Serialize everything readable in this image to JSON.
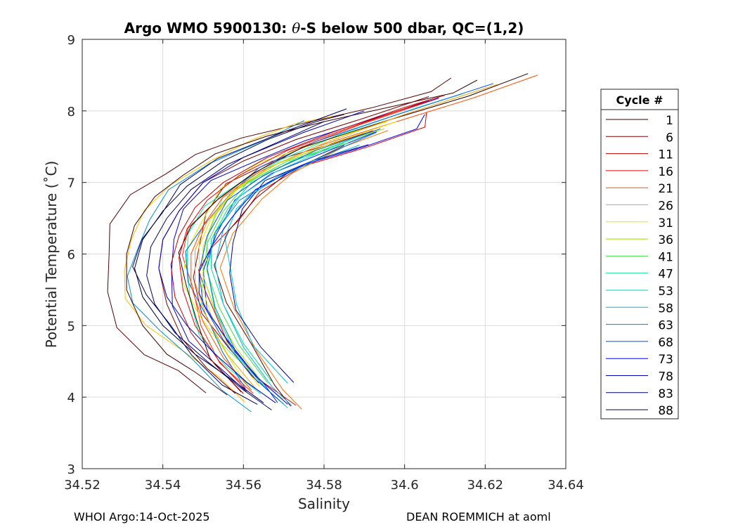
{
  "chart_data": {
    "type": "line",
    "title_prefix": "Argo WMO 5900130: ",
    "title_theta": "θ",
    "title_suffix": "-S below 500 dbar,  QC=(1,2)",
    "xlabel": "Salinity",
    "ylabel": "Potential Temperature (˚C)",
    "xlim": [
      34.52,
      34.64
    ],
    "ylim": [
      3,
      9
    ],
    "xticks": [
      34.52,
      34.54,
      34.56,
      34.58,
      34.6,
      34.62,
      34.64
    ],
    "xtick_labels": [
      "34.52",
      "34.54",
      "34.56",
      "34.58",
      "34.6",
      "34.62",
      "34.64"
    ],
    "yticks": [
      3,
      4,
      5,
      6,
      7,
      8,
      9
    ],
    "ytick_labels": [
      "3",
      "4",
      "5",
      "6",
      "7",
      "8",
      "9"
    ],
    "grid": true,
    "legend_title": "Cycle #",
    "legend_position": "right-outside",
    "series": [
      {
        "name": "1",
        "color": "#3a0000",
        "points": [
          [
            34.556,
            4.03
          ],
          [
            34.548,
            4.35
          ],
          [
            34.541,
            4.6
          ],
          [
            34.535,
            5.0
          ],
          [
            34.531,
            5.5
          ],
          [
            34.531,
            6.0
          ],
          [
            34.533,
            6.4
          ],
          [
            34.538,
            6.8
          ],
          [
            34.545,
            7.1
          ],
          [
            34.553,
            7.4
          ],
          [
            34.566,
            7.65
          ],
          [
            34.58,
            7.85
          ],
          [
            34.596,
            8.05
          ],
          [
            34.612,
            8.25
          ],
          [
            34.618,
            8.43
          ]
        ]
      },
      {
        "name": "6",
        "color": "#800000",
        "points": [
          [
            34.558,
            4.05
          ],
          [
            34.551,
            4.4
          ],
          [
            34.545,
            4.8
          ],
          [
            34.541,
            5.3
          ],
          [
            34.539,
            5.8
          ],
          [
            34.54,
            6.2
          ],
          [
            34.544,
            6.6
          ],
          [
            34.55,
            7.0
          ],
          [
            34.56,
            7.3
          ],
          [
            34.573,
            7.6
          ],
          [
            34.59,
            7.9
          ],
          [
            34.606,
            8.2
          ]
        ]
      },
      {
        "name": "11",
        "color": "#c00000",
        "points": [
          [
            34.56,
            4.05
          ],
          [
            34.553,
            4.45
          ],
          [
            34.547,
            4.9
          ],
          [
            34.543,
            5.4
          ],
          [
            34.542,
            5.85
          ],
          [
            34.544,
            6.25
          ],
          [
            34.548,
            6.65
          ],
          [
            34.555,
            7.0
          ],
          [
            34.566,
            7.35
          ],
          [
            34.582,
            7.7
          ],
          [
            34.6,
            8.05
          ],
          [
            34.61,
            8.22
          ]
        ]
      },
      {
        "name": "16",
        "color": "#f00000",
        "points": [
          [
            34.561,
            4.08
          ],
          [
            34.554,
            4.5
          ],
          [
            34.548,
            5.0
          ],
          [
            34.545,
            5.5
          ],
          [
            34.544,
            5.95
          ],
          [
            34.546,
            6.35
          ],
          [
            34.551,
            6.75
          ],
          [
            34.559,
            7.1
          ],
          [
            34.571,
            7.45
          ],
          [
            34.588,
            7.8
          ],
          [
            34.606,
            8.15
          ]
        ]
      },
      {
        "name": "21",
        "color": "#ff5000",
        "points": [
          [
            34.562,
            4.1
          ],
          [
            34.555,
            4.55
          ],
          [
            34.55,
            5.05
          ],
          [
            34.547,
            5.55
          ],
          [
            34.547,
            6.0
          ],
          [
            34.55,
            6.4
          ],
          [
            34.555,
            6.8
          ],
          [
            34.564,
            7.15
          ],
          [
            34.578,
            7.5
          ],
          [
            34.598,
            7.85
          ],
          [
            34.617,
            8.18
          ],
          [
            34.633,
            8.5
          ]
        ]
      },
      {
        "name": "26",
        "color": "#ffa000",
        "points": [
          [
            34.563,
            4.12
          ],
          [
            34.556,
            4.6
          ],
          [
            34.551,
            5.1
          ],
          [
            34.548,
            5.6
          ],
          [
            34.548,
            6.05
          ],
          [
            34.551,
            6.45
          ],
          [
            34.557,
            6.85
          ],
          [
            34.566,
            7.2
          ],
          [
            34.58,
            7.55
          ],
          [
            34.6,
            7.95
          ],
          [
            34.623,
            8.37
          ]
        ]
      },
      {
        "name": "31",
        "color": "#e6e600",
        "points": [
          [
            34.564,
            4.15
          ],
          [
            34.557,
            4.65
          ],
          [
            34.552,
            5.15
          ],
          [
            34.549,
            5.65
          ],
          [
            34.549,
            6.1
          ],
          [
            34.552,
            6.5
          ],
          [
            34.558,
            6.9
          ],
          [
            34.568,
            7.25
          ],
          [
            34.582,
            7.55
          ],
          [
            34.598,
            7.85
          ]
        ]
      },
      {
        "name": "36",
        "color": "#a0e000",
        "points": [
          [
            34.565,
            4.18
          ],
          [
            34.558,
            4.7
          ],
          [
            34.553,
            5.2
          ],
          [
            34.55,
            5.7
          ],
          [
            34.55,
            6.1
          ],
          [
            34.553,
            6.55
          ],
          [
            34.559,
            6.95
          ],
          [
            34.569,
            7.28
          ],
          [
            34.583,
            7.55
          ],
          [
            34.595,
            7.75
          ]
        ]
      },
      {
        "name": "41",
        "color": "#40e040",
        "points": [
          [
            34.566,
            4.2
          ],
          [
            34.559,
            4.72
          ],
          [
            34.554,
            5.25
          ],
          [
            34.551,
            5.75
          ],
          [
            34.551,
            6.15
          ],
          [
            34.555,
            6.6
          ],
          [
            34.561,
            7.0
          ],
          [
            34.571,
            7.3
          ],
          [
            34.585,
            7.55
          ]
        ]
      },
      {
        "name": "47",
        "color": "#00e090",
        "points": [
          [
            34.567,
            4.22
          ],
          [
            34.56,
            4.75
          ],
          [
            34.555,
            5.3
          ],
          [
            34.552,
            5.8
          ],
          [
            34.552,
            6.2
          ],
          [
            34.556,
            6.62
          ],
          [
            34.562,
            7.0
          ],
          [
            34.572,
            7.3
          ],
          [
            34.586,
            7.55
          ]
        ]
      },
      {
        "name": "53",
        "color": "#00d0c0",
        "points": [
          [
            34.571,
            3.85
          ],
          [
            34.566,
            4.1
          ],
          [
            34.558,
            4.6
          ],
          [
            34.553,
            5.2
          ],
          [
            34.551,
            5.8
          ],
          [
            34.553,
            6.3
          ],
          [
            34.559,
            6.8
          ],
          [
            34.568,
            7.15
          ],
          [
            34.582,
            7.5
          ],
          [
            34.591,
            7.7
          ]
        ]
      },
      {
        "name": "58",
        "color": "#00b0f0",
        "points": [
          [
            34.572,
            3.88
          ],
          [
            34.567,
            4.15
          ],
          [
            34.56,
            4.7
          ],
          [
            34.555,
            5.3
          ],
          [
            34.553,
            5.85
          ],
          [
            34.555,
            6.35
          ],
          [
            34.561,
            6.8
          ],
          [
            34.571,
            7.15
          ],
          [
            34.585,
            7.5
          ]
        ]
      },
      {
        "name": "63",
        "color": "#0080c0",
        "points": [
          [
            34.57,
            3.9
          ],
          [
            34.565,
            4.15
          ],
          [
            34.558,
            4.65
          ],
          [
            34.553,
            5.25
          ],
          [
            34.551,
            5.8
          ],
          [
            34.553,
            6.3
          ],
          [
            34.559,
            6.75
          ],
          [
            34.569,
            7.1
          ],
          [
            34.583,
            7.45
          ],
          [
            34.593,
            7.7
          ]
        ]
      },
      {
        "name": "68",
        "color": "#0050e0",
        "points": [
          [
            34.569,
            3.95
          ],
          [
            34.562,
            4.3
          ],
          [
            34.555,
            4.8
          ],
          [
            34.55,
            5.3
          ],
          [
            34.549,
            5.75
          ],
          [
            34.551,
            6.25
          ],
          [
            34.556,
            6.75
          ],
          [
            34.565,
            7.1
          ],
          [
            34.578,
            7.45
          ],
          [
            34.594,
            7.75
          ]
        ]
      },
      {
        "name": "73",
        "color": "#0000ff",
        "points": [
          [
            34.571,
            3.9
          ],
          [
            34.563,
            4.3
          ],
          [
            34.556,
            4.8
          ],
          [
            34.551,
            5.2
          ],
          [
            34.549,
            5.45
          ],
          [
            34.549,
            5.75
          ],
          [
            34.552,
            6.1
          ],
          [
            34.557,
            6.5
          ],
          [
            34.563,
            6.9
          ],
          [
            34.575,
            7.25
          ],
          [
            34.59,
            7.5
          ],
          [
            34.603,
            7.75
          ],
          [
            34.605,
            7.95
          ]
        ]
      },
      {
        "name": "78",
        "color": "#0000c0",
        "points": [
          [
            34.568,
            3.92
          ],
          [
            34.561,
            4.2
          ],
          [
            34.553,
            4.6
          ],
          [
            34.546,
            5.0
          ],
          [
            34.541,
            5.4
          ],
          [
            34.539,
            5.8
          ],
          [
            34.54,
            6.2
          ],
          [
            34.544,
            6.6
          ],
          [
            34.55,
            7.0
          ],
          [
            34.56,
            7.35
          ],
          [
            34.575,
            7.7
          ],
          [
            34.59,
            8.0
          ]
        ]
      },
      {
        "name": "83",
        "color": "#00006a",
        "points": [
          [
            34.567,
            3.82
          ],
          [
            34.56,
            4.1
          ],
          [
            34.551,
            4.5
          ],
          [
            34.543,
            4.9
          ],
          [
            34.538,
            5.3
          ],
          [
            34.536,
            5.7
          ],
          [
            34.537,
            6.1
          ],
          [
            34.541,
            6.5
          ],
          [
            34.547,
            6.9
          ],
          [
            34.556,
            7.25
          ],
          [
            34.568,
            7.55
          ],
          [
            34.58,
            7.85
          ]
        ]
      },
      {
        "name": "88",
        "color": "#000040",
        "points": [
          [
            34.565,
            3.92
          ],
          [
            34.557,
            4.25
          ],
          [
            34.548,
            4.6
          ],
          [
            34.54,
            5.0
          ],
          [
            34.535,
            5.4
          ],
          [
            34.533,
            5.8
          ],
          [
            34.535,
            6.2
          ],
          [
            34.54,
            6.6
          ],
          [
            34.546,
            6.95
          ],
          [
            34.555,
            7.3
          ],
          [
            34.566,
            7.6
          ],
          [
            34.578,
            7.85
          ],
          [
            34.585,
            7.95
          ]
        ]
      }
    ],
    "extra_profile_colors": [
      "#5a0000",
      "#a00000",
      "#e00000",
      "#ff3000",
      "#ff7000",
      "#ffc000",
      "#c8f000",
      "#70f070",
      "#00f0b0",
      "#00c0e0",
      "#0090e0",
      "#0060f0",
      "#0020ff",
      "#0000d0",
      "#000090",
      "#000060",
      "#200000",
      "#600000"
    ]
  },
  "footer": {
    "left": "WHOI Argo:14-Oct-2025",
    "right": "DEAN ROEMMICH at aoml"
  }
}
